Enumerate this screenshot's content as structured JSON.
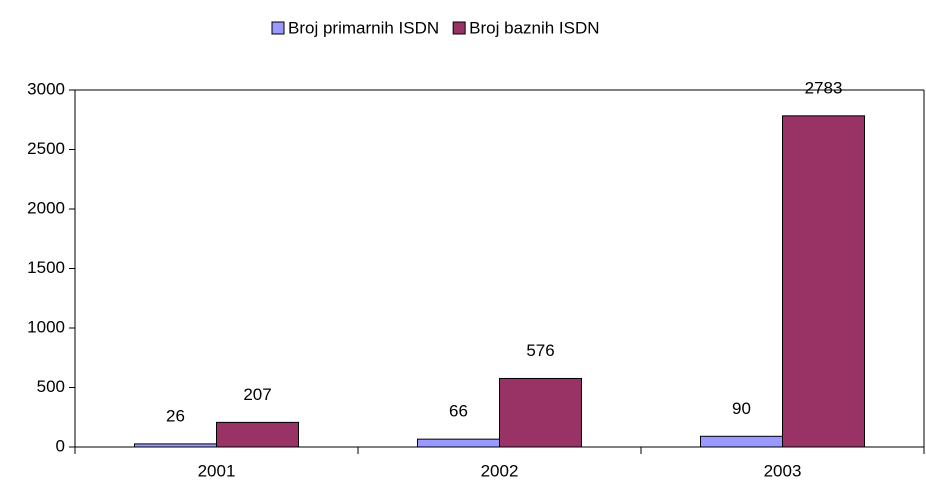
{
  "chart_data": {
    "type": "bar",
    "categories": [
      "2001",
      "2002",
      "2003"
    ],
    "series": [
      {
        "name": "Broj primarnih ISDN",
        "color": "#9999ff",
        "values": [
          26,
          66,
          90
        ]
      },
      {
        "name": "Broj baznih ISDN",
        "color": "#993366",
        "values": [
          207,
          576,
          2783
        ]
      }
    ],
    "ylim": [
      0,
      3000
    ],
    "yticks": [
      0,
      500,
      1000,
      1500,
      2000,
      2500,
      3000
    ],
    "legend": "top"
  }
}
